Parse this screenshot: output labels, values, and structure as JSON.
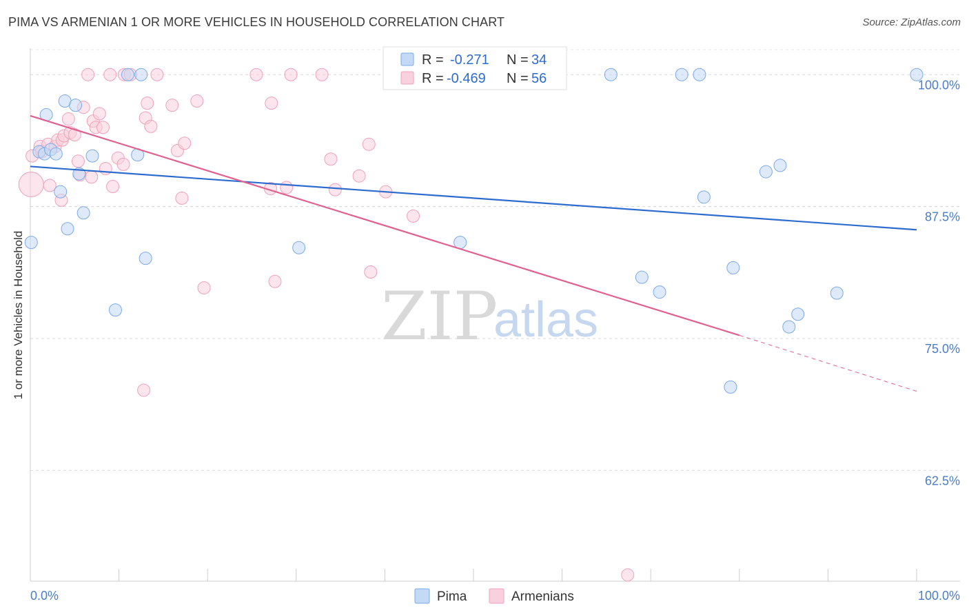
{
  "chart_data": {
    "type": "scatter",
    "title": "PIMA VS ARMENIAN 1 OR MORE VEHICLES IN HOUSEHOLD CORRELATION CHART",
    "source": "Source: ZipAtlas.com",
    "ylabel": "1 or more Vehicles in Household",
    "xlim": [
      0,
      100
    ],
    "ylim": [
      52,
      102.5
    ],
    "y_ticks": [
      62.5,
      75.0,
      87.5,
      100.0
    ],
    "y_tick_labels": [
      "62.5%",
      "75.0%",
      "87.5%",
      "100.0%"
    ],
    "x_tick_labels": [
      "0.0%",
      "100.0%"
    ],
    "grid": true,
    "watermark": {
      "zip": "ZIP",
      "atlas": "atlas"
    },
    "legend": {
      "placement": "top-center",
      "rows": [
        {
          "r_label": "R =",
          "r_value": "-0.271",
          "n_label": "N =",
          "n_value": "34"
        },
        {
          "r_label": "R =",
          "r_value": "-0.469",
          "n_label": "N =",
          "n_value": "56"
        }
      ]
    },
    "series": [
      {
        "name": "Pima",
        "color": "#7aaae8",
        "fill": "#c3d9f5",
        "line_color": "#2d6ccf",
        "trend": {
          "x0": 0,
          "y0": 91.3,
          "x1": 100,
          "y1": 85.3
        },
        "points": [
          [
            0.1,
            84.1
          ],
          [
            1.0,
            92.7
          ],
          [
            1.6,
            92.5
          ],
          [
            1.8,
            96.2
          ],
          [
            2.3,
            92.9
          ],
          [
            2.9,
            92.5
          ],
          [
            3.4,
            88.9
          ],
          [
            3.9,
            97.5
          ],
          [
            4.2,
            85.4
          ],
          [
            5.1,
            97.1
          ],
          [
            5.5,
            90.6
          ],
          [
            6.0,
            86.9
          ],
          [
            7.0,
            92.3
          ],
          [
            9.6,
            77.7
          ],
          [
            11.0,
            100.0
          ],
          [
            12.1,
            92.4
          ],
          [
            12.5,
            100.0
          ],
          [
            13.0,
            82.6
          ],
          [
            30.3,
            83.6
          ],
          [
            48.5,
            84.1
          ],
          [
            65.5,
            100.0
          ],
          [
            69.0,
            80.8
          ],
          [
            71.0,
            79.4
          ],
          [
            73.5,
            100.0
          ],
          [
            75.5,
            100.0
          ],
          [
            76.0,
            88.4
          ],
          [
            79.0,
            70.4
          ],
          [
            79.3,
            81.7
          ],
          [
            83.0,
            90.8
          ],
          [
            84.6,
            91.4
          ],
          [
            85.6,
            76.1
          ],
          [
            86.6,
            77.3
          ],
          [
            91.0,
            79.3
          ],
          [
            100.0,
            100.0
          ]
        ]
      },
      {
        "name": "Armenians",
        "color": "#f0a0b9",
        "fill": "#f9d0dd",
        "line_color": "#e0608e",
        "trend": {
          "x0": 0,
          "y0": 96.1,
          "x1": 80,
          "y1": 75.3
        },
        "trend_dashed_to": {
          "x": 100,
          "y": 70.0
        },
        "points": [
          [
            0.1,
            89.6
          ],
          [
            0.2,
            92.3
          ],
          [
            1.1,
            93.2
          ],
          [
            1.3,
            92.7
          ],
          [
            2.0,
            93.4
          ],
          [
            2.2,
            89.5
          ],
          [
            2.8,
            93.2
          ],
          [
            3.1,
            93.8
          ],
          [
            3.5,
            88.1
          ],
          [
            3.6,
            93.8
          ],
          [
            3.8,
            94.2
          ],
          [
            4.3,
            95.8
          ],
          [
            4.5,
            94.5
          ],
          [
            5.0,
            94.3
          ],
          [
            5.4,
            91.8
          ],
          [
            5.6,
            90.5
          ],
          [
            6.0,
            96.9
          ],
          [
            6.5,
            100.0
          ],
          [
            6.9,
            90.3
          ],
          [
            7.1,
            95.6
          ],
          [
            7.4,
            95.0
          ],
          [
            7.8,
            96.3
          ],
          [
            8.2,
            95.0
          ],
          [
            8.5,
            91.1
          ],
          [
            9.0,
            100.0
          ],
          [
            9.3,
            89.4
          ],
          [
            9.9,
            92.1
          ],
          [
            10.5,
            91.5
          ],
          [
            10.6,
            100.0
          ],
          [
            11.3,
            100.0
          ],
          [
            12.8,
            70.1
          ],
          [
            13.0,
            95.9
          ],
          [
            13.2,
            97.3
          ],
          [
            13.6,
            95.1
          ],
          [
            14.3,
            100.0
          ],
          [
            16.0,
            97.1
          ],
          [
            16.6,
            92.8
          ],
          [
            17.1,
            88.3
          ],
          [
            17.4,
            93.5
          ],
          [
            18.8,
            97.5
          ],
          [
            19.6,
            79.8
          ],
          [
            25.5,
            100.0
          ],
          [
            27.1,
            89.2
          ],
          [
            27.2,
            97.3
          ],
          [
            27.6,
            80.4
          ],
          [
            28.9,
            89.3
          ],
          [
            29.4,
            100.0
          ],
          [
            32.9,
            100.0
          ],
          [
            33.9,
            92.0
          ],
          [
            34.4,
            89.1
          ],
          [
            37.1,
            90.4
          ],
          [
            38.4,
            81.3
          ],
          [
            38.2,
            93.4
          ],
          [
            40.1,
            88.9
          ],
          [
            43.2,
            86.6
          ],
          [
            67.4,
            52.6
          ]
        ]
      }
    ]
  }
}
